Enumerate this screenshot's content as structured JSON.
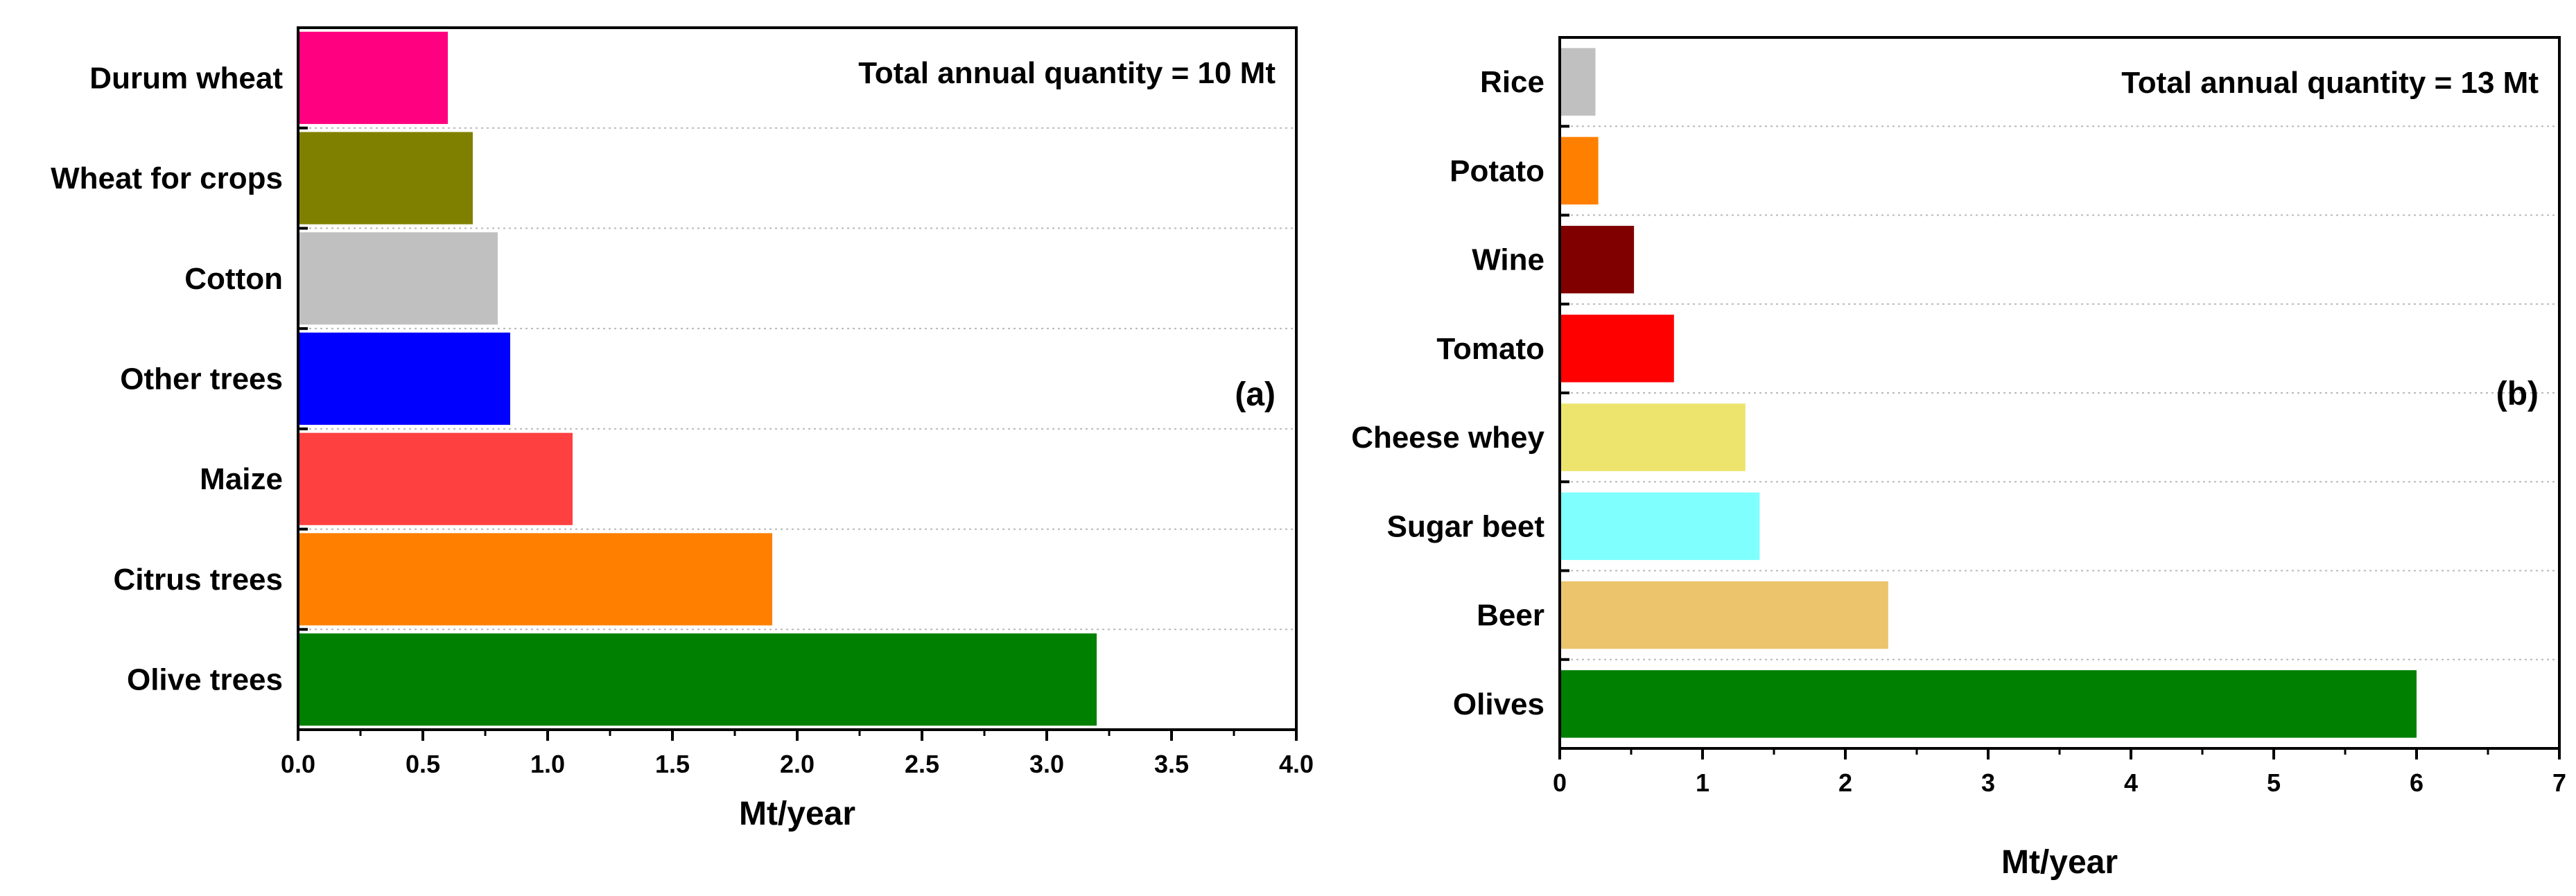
{
  "chart_data": [
    {
      "type": "bar",
      "orientation": "horizontal",
      "panel": "(a)",
      "annotation": "Total annual quantity = 10 Mt",
      "xlabel": "Mt/year",
      "ylabel": "",
      "xlim": [
        0,
        4.0
      ],
      "ticks": [
        "0.0",
        "0.5",
        "1.0",
        "1.5",
        "2.0",
        "2.5",
        "3.0",
        "3.5",
        "4.0"
      ],
      "grid": true,
      "categories": [
        "Durum wheat",
        "Wheat for crops",
        "Cotton",
        "Other trees",
        "Maize",
        "Citrus trees",
        "Olive trees"
      ],
      "values": [
        0.6,
        0.7,
        0.8,
        0.85,
        1.1,
        1.9,
        3.2
      ],
      "colors": [
        "#ff0080",
        "#808000",
        "#c0c0c0",
        "#0000ff",
        "#ff4040",
        "#ff8000",
        "#008000"
      ]
    },
    {
      "type": "bar",
      "orientation": "horizontal",
      "panel": "(b)",
      "annotation": "Total annual quantity = 13 Mt",
      "xlabel": "Mt/year",
      "ylabel": "",
      "xlim": [
        0,
        7
      ],
      "ticks": [
        "0",
        "1",
        "2",
        "3",
        "4",
        "5",
        "6",
        "7"
      ],
      "grid": true,
      "categories": [
        "Rice",
        "Potato",
        "Wine",
        "Tomato",
        "Cheese whey",
        "Sugar beet",
        "Beer",
        "Olives"
      ],
      "values": [
        0.25,
        0.27,
        0.52,
        0.8,
        1.3,
        1.4,
        2.3,
        6.0
      ],
      "colors": [
        "#c0c0c0",
        "#ff8000",
        "#800000",
        "#ff0000",
        "#ece46c",
        "#80ffff",
        "#ebc46c",
        "#008000"
      ]
    }
  ]
}
